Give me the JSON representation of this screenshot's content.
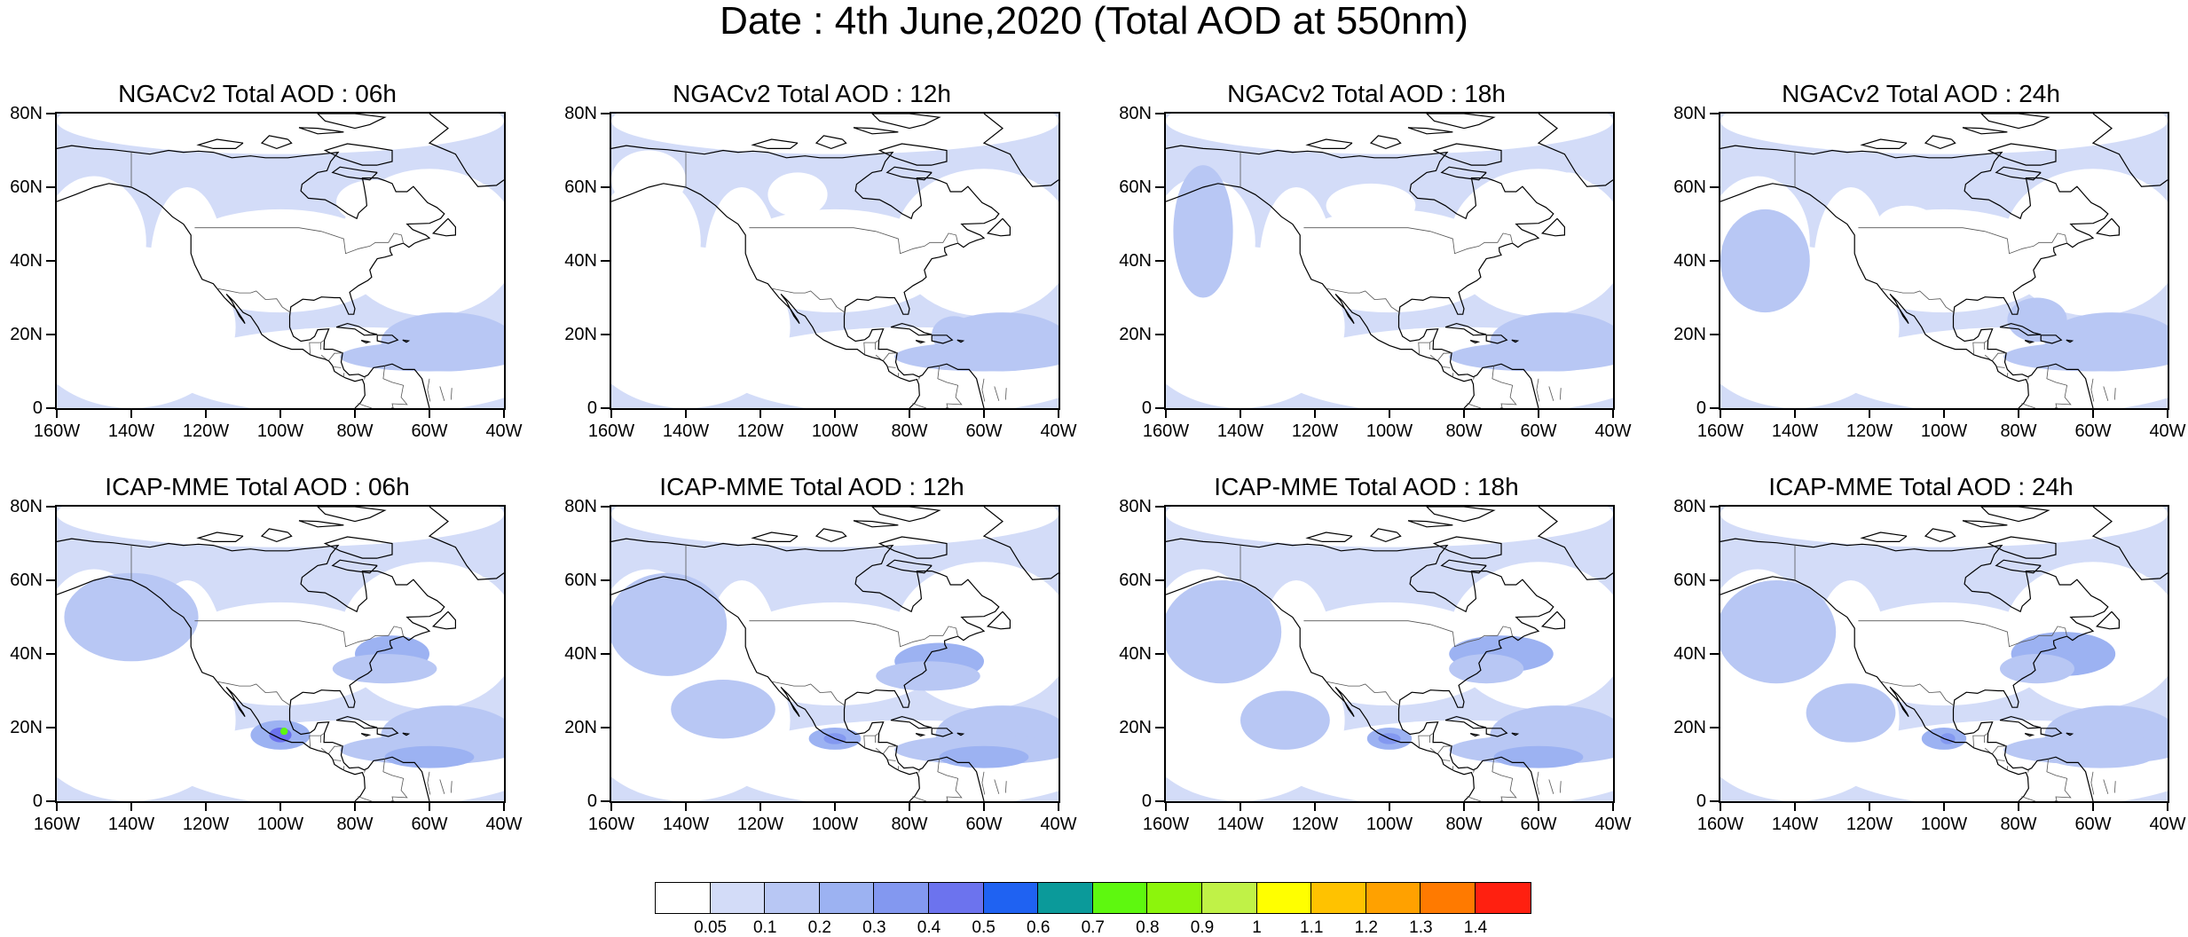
{
  "title": "Date : 4th June,2020 (Total AOD at 550nm)",
  "y_axis_labels": [
    "80N",
    "60N",
    "40N",
    "20N",
    "0"
  ],
  "x_axis_labels": [
    "160W",
    "140W",
    "120W",
    "100W",
    "80W",
    "60W",
    "40W"
  ],
  "map_extent": {
    "lon_min": -160,
    "lon_max": -40,
    "lat_min": 0,
    "lat_max": 80
  },
  "panels": [
    {
      "title": "NGACv2 Total AOD : 06h",
      "model": "NGACv2",
      "hour": "06h"
    },
    {
      "title": "NGACv2 Total AOD : 12h",
      "model": "NGACv2",
      "hour": "12h"
    },
    {
      "title": "NGACv2 Total AOD : 18h",
      "model": "NGACv2",
      "hour": "18h"
    },
    {
      "title": "NGACv2 Total AOD : 24h",
      "model": "NGACv2",
      "hour": "24h"
    },
    {
      "title": "ICAP-MME Total AOD : 06h",
      "model": "ICAP-MME",
      "hour": "06h"
    },
    {
      "title": "ICAP-MME Total AOD : 12h",
      "model": "ICAP-MME",
      "hour": "12h"
    },
    {
      "title": "ICAP-MME Total AOD : 18h",
      "model": "ICAP-MME",
      "hour": "18h"
    },
    {
      "title": "ICAP-MME Total AOD : 24h",
      "model": "ICAP-MME",
      "hour": "24h"
    }
  ],
  "colorbar": {
    "labels": [
      "0.05",
      "0.1",
      "0.2",
      "0.3",
      "0.4",
      "0.5",
      "0.6",
      "0.7",
      "0.8",
      "0.9",
      "1",
      "1.1",
      "1.2",
      "1.3",
      "1.4"
    ],
    "colors": [
      "#ffffff",
      "#d3dcf8",
      "#b8c7f4",
      "#9cb2f2",
      "#8398f0",
      "#6c73ee",
      "#1f62f2",
      "#0b9a9a",
      "#5ef80f",
      "#8cf50c",
      "#c0f247",
      "#ffff00",
      "#ffc200",
      "#ffa100",
      "#ff7a00",
      "#ff2010"
    ]
  }
}
